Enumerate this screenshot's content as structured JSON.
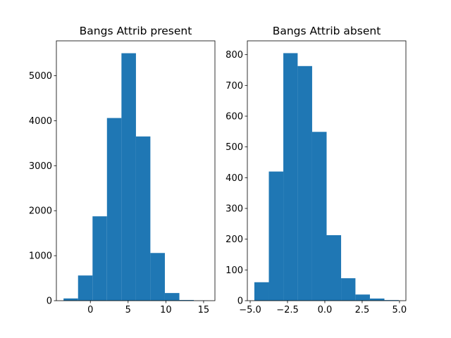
{
  "chart_data": [
    {
      "type": "histogram",
      "title": "Bangs Attrib present",
      "color": "#1f77b4",
      "bins": [
        -3.55,
        -1.63,
        0.29,
        2.2,
        4.12,
        6.04,
        7.95,
        9.87,
        11.79,
        13.7,
        15.62
      ],
      "counts": [
        50,
        560,
        1875,
        4060,
        5500,
        3650,
        1060,
        170,
        15,
        3
      ],
      "xlim": [
        -4.5,
        16.5
      ],
      "xticks": [
        0,
        5,
        10,
        15
      ],
      "ylim": [
        0,
        5775
      ],
      "yticks": [
        0,
        1000,
        2000,
        3000,
        4000,
        5000
      ]
    },
    {
      "type": "histogram",
      "title": "Bangs Attrib absent",
      "color": "#1f77b4",
      "bins": [
        -4.72,
        -3.75,
        -2.78,
        -1.82,
        -0.85,
        0.12,
        1.09,
        2.05,
        3.02,
        3.99,
        4.95
      ],
      "counts": [
        60,
        420,
        805,
        763,
        549,
        213,
        73,
        20,
        7,
        2
      ],
      "xlim": [
        -5.19,
        5.43
      ],
      "xticks": [
        {
          "value": -5,
          "label": "−5.0"
        },
        {
          "value": -2.5,
          "label": "−2.5"
        },
        {
          "value": 0,
          "label": "0.0"
        },
        2.5,
        {
          "value": 5,
          "label": "5.0"
        }
      ],
      "ylim": [
        0,
        845
      ],
      "yticks": [
        0,
        100,
        200,
        300,
        400,
        500,
        600,
        700,
        800
      ]
    }
  ]
}
